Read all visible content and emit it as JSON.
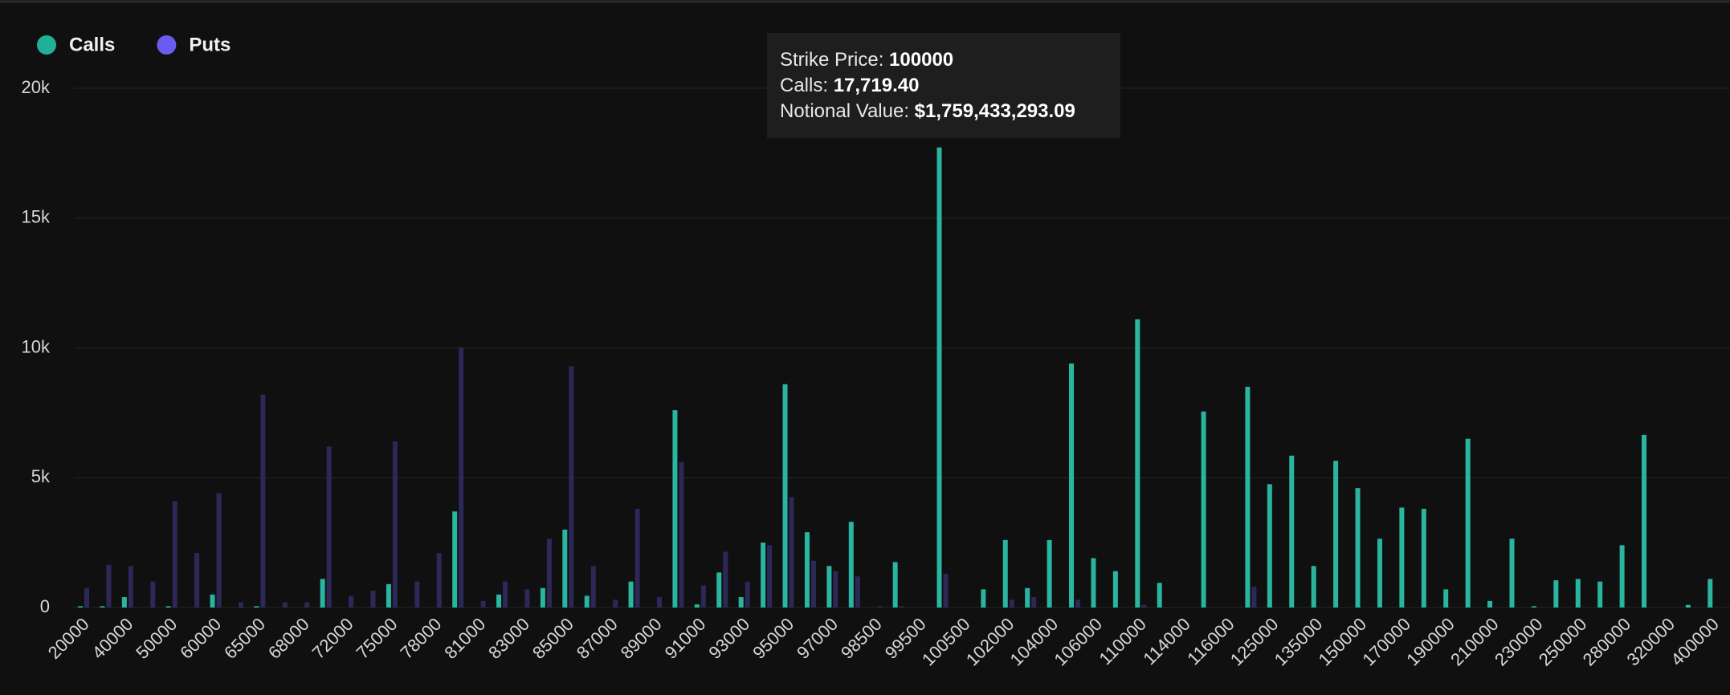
{
  "chart_data": {
    "type": "bar",
    "categories": [
      "20000",
      null,
      "40000",
      null,
      "50000",
      null,
      "60000",
      null,
      "65000",
      null,
      "68000",
      null,
      "72000",
      null,
      "75000",
      null,
      "78000",
      null,
      "81000",
      null,
      "83000",
      null,
      "85000",
      null,
      "87000",
      null,
      "89000",
      null,
      "91000",
      null,
      "93000",
      null,
      "95000",
      null,
      "97000",
      null,
      "98500",
      null,
      "99500",
      null,
      "100500",
      null,
      "102000",
      null,
      "104000",
      null,
      "106000",
      null,
      "110000",
      null,
      "114000",
      null,
      "116000",
      null,
      "125000",
      null,
      "135000",
      null,
      "150000",
      null,
      "170000",
      null,
      "190000",
      null,
      "210000",
      null,
      "230000",
      null,
      "250000",
      null,
      "280000",
      null,
      "320000",
      null,
      "400000"
    ],
    "series": [
      {
        "name": "Calls",
        "color": "#2ab5a0",
        "legend_color": "#20b09a",
        "values": [
          50,
          50,
          400,
          0,
          50,
          0,
          500,
          0,
          50,
          0,
          0,
          1100,
          0,
          0,
          900,
          0,
          0,
          3700,
          0,
          500,
          0,
          750,
          3000,
          450,
          0,
          1000,
          0,
          7600,
          120,
          1350,
          400,
          2500,
          8600,
          2900,
          1600,
          3300,
          0,
          1750,
          0,
          17719.4,
          0,
          700,
          2600,
          750,
          2600,
          9400,
          1900,
          1400,
          11100,
          950,
          0,
          7550,
          0,
          8500,
          4750,
          5850,
          1600,
          5650,
          4600,
          2650,
          3850,
          3800,
          700,
          6500,
          250,
          2650,
          50,
          1050,
          1100,
          1000,
          2400,
          6650,
          0,
          100,
          1100
        ]
      },
      {
        "name": "Puts",
        "color": "#2c2858",
        "legend_color": "#6a5cf0",
        "values": [
          750,
          1650,
          1600,
          1000,
          4100,
          2100,
          4400,
          200,
          8200,
          200,
          200,
          6200,
          450,
          650,
          6400,
          1000,
          2100,
          10000,
          250,
          1000,
          700,
          2650,
          9300,
          1600,
          300,
          3800,
          400,
          5600,
          850,
          2150,
          1000,
          2400,
          4250,
          1800,
          1400,
          1200,
          50,
          50,
          0,
          1300,
          0,
          0,
          300,
          400,
          0,
          300,
          0,
          0,
          100,
          0,
          0,
          0,
          0,
          800,
          0,
          0,
          0,
          0,
          0,
          0,
          0,
          0,
          0,
          0,
          0,
          0,
          0,
          0,
          0,
          0,
          0,
          0,
          0,
          0,
          0
        ]
      }
    ],
    "ylim": [
      0,
      20000
    ],
    "yticks": [
      {
        "value": 0,
        "label": "0"
      },
      {
        "value": 5000,
        "label": "5k"
      },
      {
        "value": 10000,
        "label": "10k"
      },
      {
        "value": 15000,
        "label": "15k"
      },
      {
        "value": 20000,
        "label": "20k"
      }
    ],
    "grid": true,
    "legend": "top-left",
    "tooltip": {
      "strike_label": "Strike Price:",
      "strike_value": "100000",
      "calls_label": "Calls:",
      "calls_value": "17,719.40",
      "notional_label": "Notional Value:",
      "notional_value": "$1,759,433,293.09"
    }
  }
}
